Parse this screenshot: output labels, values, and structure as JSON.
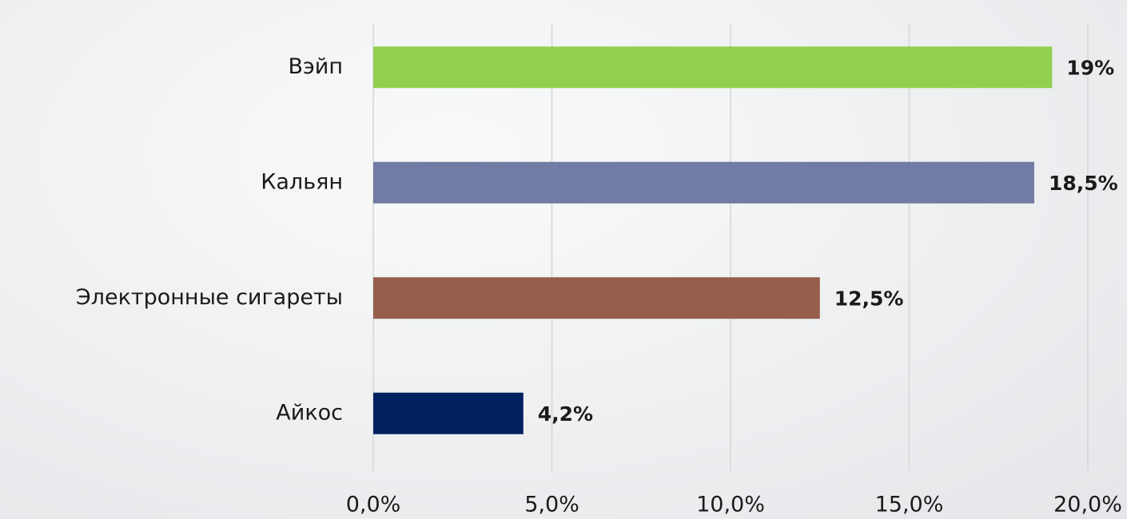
{
  "chart_data": {
    "type": "barh",
    "categories": [
      "Вэйп",
      "Кальян",
      "Электронные сигареты",
      "Айкос"
    ],
    "values": [
      19,
      18.5,
      12.5,
      4.2
    ],
    "value_labels": [
      "19%",
      "18,5%",
      "12,5%",
      "4,2%"
    ],
    "colors": [
      "#92d050",
      "#717ba3",
      "#955e4b",
      "#002060"
    ],
    "xlim": [
      0,
      20
    ],
    "xticks": [
      {
        "value": 0,
        "label": "0,0%"
      },
      {
        "value": 5,
        "label": "5,0%"
      },
      {
        "value": 10,
        "label": "10,0%"
      },
      {
        "value": 15,
        "label": "15,0%"
      },
      {
        "value": 20,
        "label": "20,0%"
      }
    ],
    "grid": true
  }
}
